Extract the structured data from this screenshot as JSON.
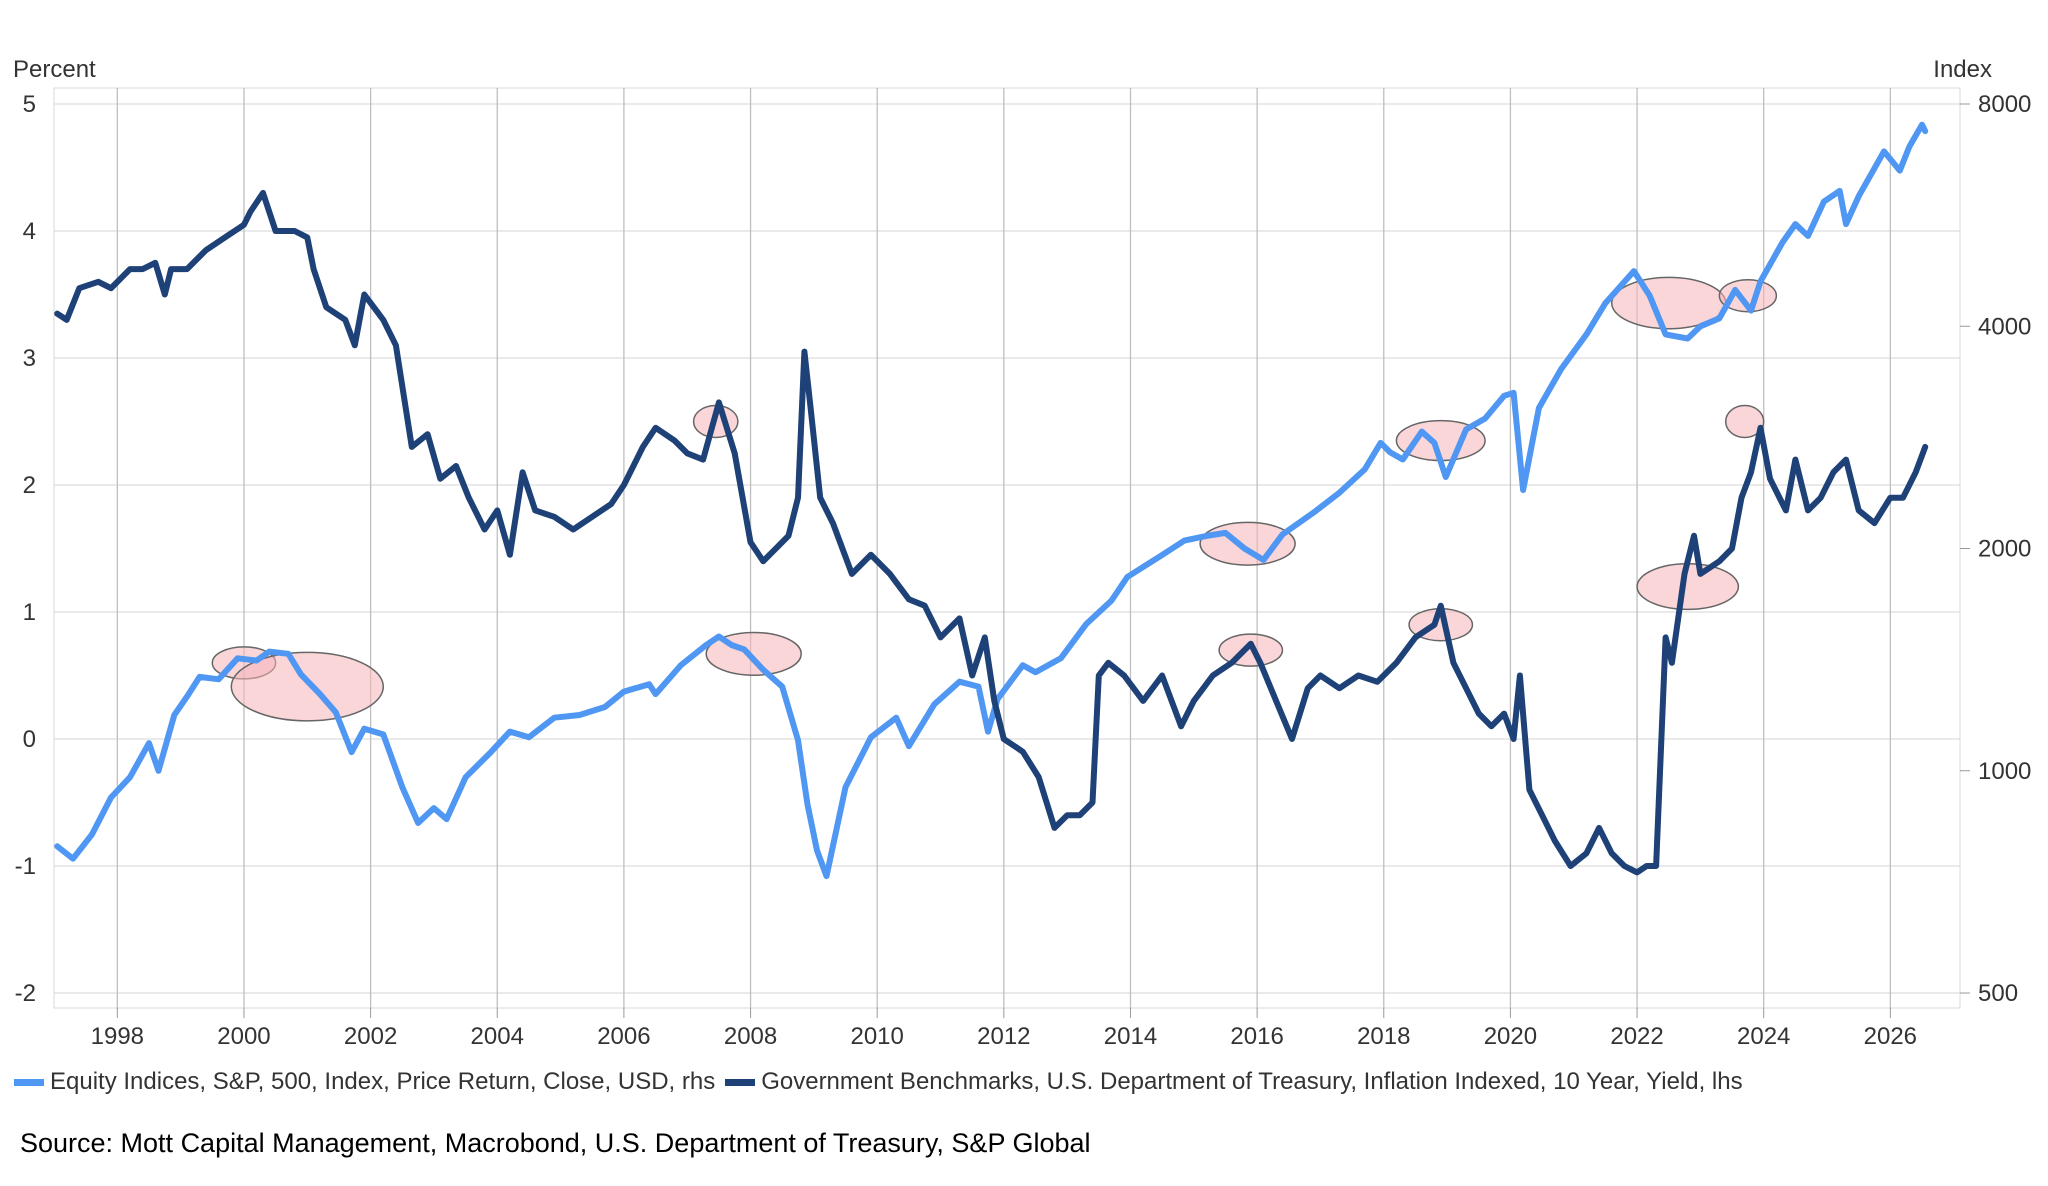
{
  "chart_data": {
    "type": "line",
    "title": "",
    "x_range": [
      "1997-01",
      "2026-12"
    ],
    "x_tick_labels": [
      "1998",
      "2000",
      "2002",
      "2004",
      "2006",
      "2008",
      "2010",
      "2012",
      "2014",
      "2016",
      "2018",
      "2020",
      "2022",
      "2024",
      "2026"
    ],
    "y_left": {
      "unit_label": "Percent",
      "range": [
        -2,
        5
      ],
      "tick_labels": [
        "-2",
        "-1",
        "0",
        "1",
        "2",
        "3",
        "4",
        "5"
      ],
      "scale": "linear"
    },
    "y_right": {
      "unit_label": "Index",
      "range": [
        500,
        8000
      ],
      "tick_labels": [
        "500",
        "1000",
        "2000",
        "4000",
        "8000"
      ],
      "scale": "log"
    },
    "grid": true,
    "legend_position": "bottom-left",
    "series": [
      {
        "name": "Equity Indices, S&P, 500, Index, Price Return, Close, USD, rhs",
        "axis": "right",
        "color": "#4f97f2",
        "x": [
          1997.05,
          1997.3,
          1997.6,
          1997.9,
          1998.2,
          1998.5,
          1998.65,
          1998.9,
          1999.1,
          1999.3,
          1999.6,
          1999.9,
          2000.2,
          2000.4,
          2000.7,
          2000.9,
          2001.2,
          2001.45,
          2001.7,
          2001.9,
          2002.2,
          2002.5,
          2002.75,
          2003.0,
          2003.2,
          2003.5,
          2003.9,
          2004.2,
          2004.5,
          2004.9,
          2005.3,
          2005.7,
          2006.0,
          2006.4,
          2006.5,
          2006.9,
          2007.3,
          2007.5,
          2007.7,
          2007.9,
          2008.2,
          2008.5,
          2008.75,
          2008.9,
          2009.05,
          2009.2,
          2009.5,
          2009.9,
          2010.3,
          2010.5,
          2010.9,
          2011.3,
          2011.6,
          2011.75,
          2011.9,
          2012.3,
          2012.5,
          2012.9,
          2013.3,
          2013.7,
          2013.95,
          2014.5,
          2014.85,
          2015.2,
          2015.5,
          2015.8,
          2016.1,
          2016.4,
          2016.9,
          2017.3,
          2017.7,
          2017.95,
          2018.1,
          2018.3,
          2018.6,
          2018.8,
          2018.98,
          2019.3,
          2019.6,
          2019.9,
          2020.05,
          2020.2,
          2020.45,
          2020.8,
          2021.2,
          2021.5,
          2021.95,
          2022.2,
          2022.45,
          2022.8,
          2023.0,
          2023.3,
          2023.55,
          2023.8,
          2023.95,
          2024.3,
          2024.5,
          2024.7,
          2024.95,
          2025.2,
          2025.3,
          2025.5,
          2025.9,
          2026.15,
          2026.3,
          2026.5,
          2026.55
        ],
        "y": [
          790,
          760,
          820,
          920,
          980,
          1090,
          1000,
          1190,
          1260,
          1340,
          1330,
          1420,
          1410,
          1450,
          1440,
          1350,
          1270,
          1200,
          1060,
          1140,
          1120,
          950,
          850,
          890,
          860,
          980,
          1060,
          1130,
          1110,
          1180,
          1190,
          1220,
          1280,
          1310,
          1270,
          1390,
          1480,
          1520,
          1480,
          1460,
          1370,
          1300,
          1100,
          900,
          780,
          720,
          950,
          1110,
          1180,
          1080,
          1230,
          1320,
          1300,
          1130,
          1250,
          1390,
          1360,
          1420,
          1580,
          1700,
          1830,
          1960,
          2050,
          2080,
          2100,
          2000,
          1930,
          2090,
          2240,
          2380,
          2560,
          2780,
          2700,
          2640,
          2880,
          2780,
          2500,
          2900,
          3000,
          3220,
          3250,
          2400,
          3100,
          3500,
          3900,
          4300,
          4750,
          4400,
          3900,
          3850,
          4000,
          4100,
          4480,
          4200,
          4600,
          5200,
          5500,
          5300,
          5900,
          6100,
          5500,
          6000,
          6900,
          6500,
          7000,
          7500,
          7350
        ]
      },
      {
        "name": "Government Benchmarks, U.S. Department of Treasury, Inflation Indexed, 10 Year, Yield, lhs",
        "axis": "left",
        "color": "#1e4278",
        "x": [
          1997.05,
          1997.2,
          1997.4,
          1997.7,
          1997.9,
          1998.2,
          1998.4,
          1998.6,
          1998.75,
          1998.85,
          1999.1,
          1999.4,
          1999.7,
          2000.0,
          2000.1,
          2000.3,
          2000.5,
          2000.8,
          2001.0,
          2001.1,
          2001.3,
          2001.6,
          2001.75,
          2001.9,
          2002.2,
          2002.4,
          2002.65,
          2002.9,
          2003.1,
          2003.35,
          2003.55,
          2003.8,
          2004.0,
          2004.2,
          2004.4,
          2004.6,
          2004.9,
          2005.2,
          2005.5,
          2005.8,
          2006.0,
          2006.3,
          2006.5,
          2006.8,
          2007.0,
          2007.25,
          2007.5,
          2007.75,
          2008.0,
          2008.2,
          2008.4,
          2008.6,
          2008.75,
          2008.85,
          2008.95,
          2009.1,
          2009.3,
          2009.6,
          2009.9,
          2010.2,
          2010.5,
          2010.75,
          2011.0,
          2011.3,
          2011.5,
          2011.7,
          2011.85,
          2012.0,
          2012.3,
          2012.55,
          2012.8,
          2013.0,
          2013.2,
          2013.4,
          2013.5,
          2013.65,
          2013.9,
          2014.2,
          2014.5,
          2014.8,
          2015.0,
          2015.3,
          2015.6,
          2015.9,
          2016.05,
          2016.3,
          2016.55,
          2016.8,
          2017.0,
          2017.3,
          2017.6,
          2017.9,
          2018.2,
          2018.5,
          2018.8,
          2018.9,
          2019.1,
          2019.3,
          2019.5,
          2019.7,
          2019.9,
          2020.05,
          2020.15,
          2020.3,
          2020.5,
          2020.7,
          2020.95,
          2021.2,
          2021.4,
          2021.6,
          2021.8,
          2022.0,
          2022.15,
          2022.3,
          2022.45,
          2022.55,
          2022.75,
          2022.9,
          2023.0,
          2023.3,
          2023.5,
          2023.65,
          2023.8,
          2023.95,
          2024.1,
          2024.35,
          2024.5,
          2024.7,
          2024.9,
          2025.1,
          2025.3,
          2025.5,
          2025.75,
          2026.0,
          2026.2,
          2026.4,
          2026.55
        ],
        "y": [
          3.35,
          3.3,
          3.55,
          3.6,
          3.55,
          3.7,
          3.7,
          3.75,
          3.5,
          3.7,
          3.7,
          3.85,
          3.95,
          4.05,
          4.15,
          4.3,
          4.0,
          4.0,
          3.95,
          3.7,
          3.4,
          3.3,
          3.1,
          3.5,
          3.3,
          3.1,
          2.3,
          2.4,
          2.05,
          2.15,
          1.9,
          1.65,
          1.8,
          1.45,
          2.1,
          1.8,
          1.75,
          1.65,
          1.75,
          1.85,
          2.0,
          2.3,
          2.45,
          2.35,
          2.25,
          2.2,
          2.65,
          2.25,
          1.55,
          1.4,
          1.5,
          1.6,
          1.9,
          3.05,
          2.6,
          1.9,
          1.7,
          1.3,
          1.45,
          1.3,
          1.1,
          1.05,
          0.8,
          0.95,
          0.5,
          0.8,
          0.3,
          0.0,
          -0.1,
          -0.3,
          -0.7,
          -0.6,
          -0.6,
          -0.5,
          0.5,
          0.6,
          0.5,
          0.3,
          0.5,
          0.1,
          0.3,
          0.5,
          0.6,
          0.75,
          0.6,
          0.3,
          0.0,
          0.4,
          0.5,
          0.4,
          0.5,
          0.45,
          0.6,
          0.8,
          0.9,
          1.05,
          0.6,
          0.4,
          0.2,
          0.1,
          0.2,
          0.0,
          0.5,
          -0.4,
          -0.6,
          -0.8,
          -1.0,
          -0.9,
          -0.7,
          -0.9,
          -1.0,
          -1.05,
          -1.0,
          -1.0,
          0.8,
          0.6,
          1.3,
          1.6,
          1.3,
          1.4,
          1.5,
          1.9,
          2.1,
          2.45,
          2.05,
          1.8,
          2.2,
          1.8,
          1.9,
          2.1,
          2.2,
          1.8,
          1.7,
          1.9,
          1.9,
          2.1,
          2.3
        ]
      }
    ],
    "highlight_regions": [
      {
        "axis": "right",
        "from": 1999.5,
        "to": 2000.5,
        "value": 1400
      },
      {
        "axis": "right",
        "from": 1999.8,
        "to": 2002.2,
        "value": 1300
      },
      {
        "axis": "left",
        "from": 2007.1,
        "to": 2007.8,
        "value": 2.5
      },
      {
        "axis": "right",
        "from": 2007.3,
        "to": 2008.8,
        "value": 1440
      },
      {
        "axis": "right",
        "from": 2015.1,
        "to": 2016.6,
        "value": 2030
      },
      {
        "axis": "left",
        "from": 2015.4,
        "to": 2016.4,
        "value": 0.7
      },
      {
        "axis": "right",
        "from": 2018.2,
        "to": 2019.6,
        "value": 2800
      },
      {
        "axis": "left",
        "from": 2018.4,
        "to": 2019.4,
        "value": 0.9
      },
      {
        "axis": "right",
        "from": 2021.6,
        "to": 2023.4,
        "value": 4300
      },
      {
        "axis": "left",
        "from": 2022.0,
        "to": 2023.6,
        "value": 1.2
      },
      {
        "axis": "right",
        "from": 2023.3,
        "to": 2024.2,
        "value": 4400
      },
      {
        "axis": "left",
        "from": 2023.4,
        "to": 2024.0,
        "value": 2.5
      }
    ]
  },
  "units": {
    "left": "Percent",
    "right": "Index"
  },
  "legend": {
    "items": [
      {
        "label": "Equity Indices, S&P, 500, Index, Price Return, Close, USD, rhs",
        "color": "#4f97f2"
      },
      {
        "label": "Government Benchmarks, U.S. Department of Treasury, Inflation Indexed, 10 Year, Yield, lhs",
        "color": "#1e4278"
      }
    ]
  },
  "source": "Source: Mott Capital Management, Macrobond, U.S. Department of Treasury, S&P Global"
}
